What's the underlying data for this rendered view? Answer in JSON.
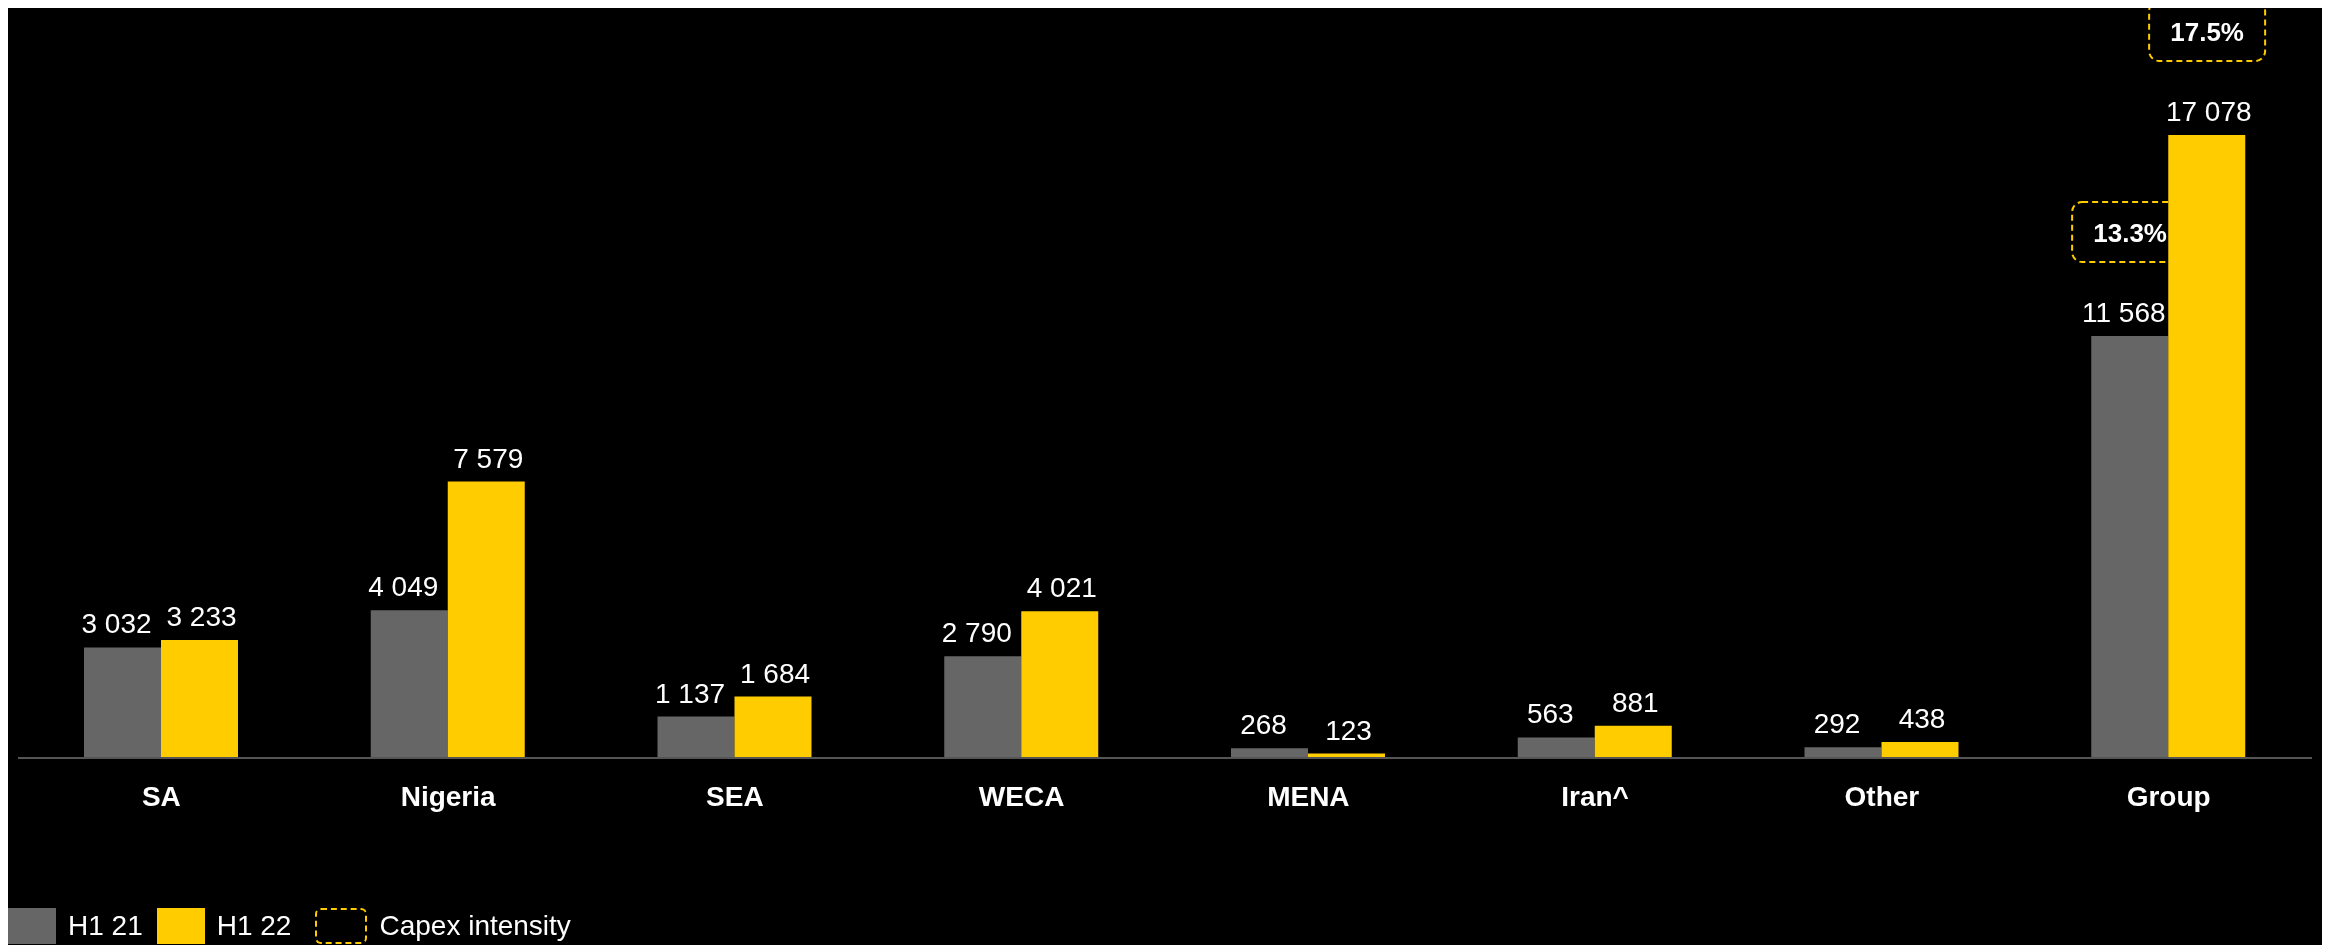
{
  "chart_data": {
    "type": "bar",
    "categories": [
      "SA",
      "Nigeria",
      "SEA",
      "WECA",
      "MENA",
      "Iran^",
      "Other",
      "Group"
    ],
    "series": [
      {
        "name": "H1 21",
        "color": "#666666",
        "values": [
          3032,
          4049,
          1137,
          2790,
          268,
          563,
          292,
          11568
        ],
        "value_labels": [
          "3 032",
          "4 049",
          "1 137",
          "2 790",
          "268",
          "563",
          "292",
          "11 568"
        ]
      },
      {
        "name": "H1 22",
        "color": "#ffcc00",
        "values": [
          3233,
          7579,
          1684,
          4021,
          123,
          881,
          438,
          17078
        ],
        "value_labels": [
          "3 233",
          "7 579",
          "1 684",
          "4 021",
          "123",
          "881",
          "438",
          "17 078"
        ]
      }
    ],
    "annotations": [
      "13.3%",
      "17.5%",
      "Capex intensity"
    ],
    "legend": "bottom left",
    "grid": false
  }
}
